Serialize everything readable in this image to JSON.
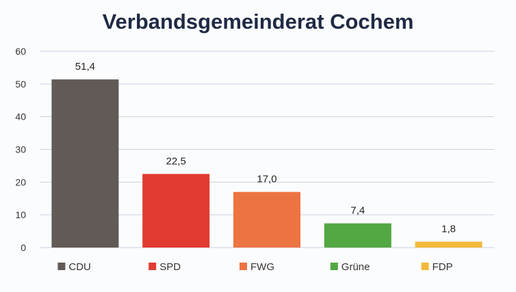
{
  "chart_data": {
    "type": "bar",
    "title": "Verbandsgemeinderat Cochem",
    "xlabel": "",
    "ylabel": "",
    "ylim": [
      0,
      60
    ],
    "yticks": [
      0,
      10,
      20,
      30,
      40,
      50,
      60
    ],
    "grid": true,
    "legend_position": "bottom",
    "categories": [
      "CDU",
      "SPD",
      "FWG",
      "Grüne",
      "FDP"
    ],
    "values": [
      51.4,
      22.5,
      17.0,
      7.4,
      1.8
    ],
    "data_labels": [
      "51,4",
      "22,5",
      "17,0",
      "7,4",
      "1,8"
    ],
    "colors": [
      "#625a56",
      "#e23b31",
      "#ec7441",
      "#52a842",
      "#f3b93a"
    ]
  }
}
